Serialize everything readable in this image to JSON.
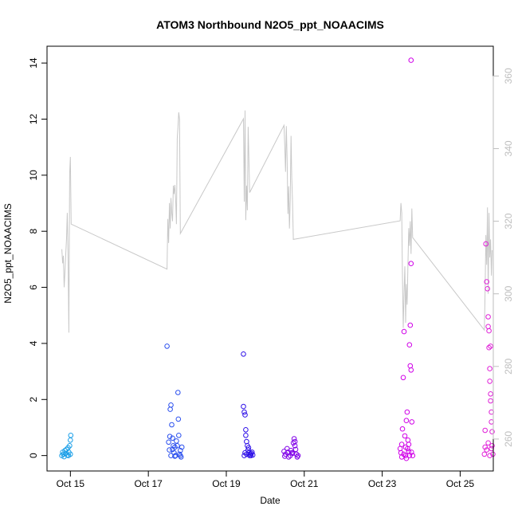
{
  "chart_data": {
    "type": "scatter",
    "title": "ATOM3 Northbound N2O5_ppt_NOAACIMS",
    "xlabel": "Date",
    "ylabel": "N2O5_ppt_NOAACIMS",
    "x_unit": "days in October",
    "xlim": [
      14.4,
      25.85
    ],
    "ylim": [
      -0.55,
      14.6
    ],
    "y2lim": [
      251.2,
      368.2
    ],
    "x_ticks": [
      15,
      17,
      19,
      21,
      23,
      25
    ],
    "x_tick_labels": [
      "Oct 15",
      "Oct 17",
      "Oct 19",
      "Oct 21",
      "Oct 23",
      "Oct 25"
    ],
    "y_ticks": [
      0,
      2,
      4,
      6,
      8,
      10,
      12,
      14
    ],
    "y_tick_labels": [
      "0",
      "2",
      "4",
      "6",
      "8",
      "10",
      "12",
      "14"
    ],
    "y2_ticks": [
      260,
      280,
      300,
      320,
      340,
      360
    ],
    "y2_tick_labels": [
      "260",
      "280",
      "300",
      "320",
      "340",
      "360"
    ],
    "grid": false,
    "secondary_line_color": "#c8c8c8",
    "secondary_axis_color": "#bebebe",
    "secondary_line": [
      [
        14.78,
        312.3
      ],
      [
        14.8,
        308.4
      ],
      [
        14.82,
        310.5
      ],
      [
        14.84,
        301.8
      ],
      [
        14.86,
        306.0
      ],
      [
        14.88,
        311.0
      ],
      [
        14.9,
        315.3
      ],
      [
        14.92,
        322.3
      ],
      [
        14.94,
        310.4
      ],
      [
        14.96,
        289.3
      ],
      [
        14.98,
        333.0
      ],
      [
        15.0,
        337.7
      ],
      [
        15.02,
        319.2
      ],
      [
        17.48,
        306.8
      ],
      [
        17.5,
        320.6
      ],
      [
        17.52,
        314.0
      ],
      [
        17.54,
        325.0
      ],
      [
        17.56,
        318.0
      ],
      [
        17.58,
        326.4
      ],
      [
        17.6,
        322.3
      ],
      [
        17.62,
        320.0
      ],
      [
        17.64,
        329.8
      ],
      [
        17.66,
        327.5
      ],
      [
        17.68,
        330.0
      ],
      [
        17.7,
        326.0
      ],
      [
        17.72,
        319.2
      ],
      [
        17.74,
        342.8
      ],
      [
        17.76,
        345.9
      ],
      [
        17.78,
        350.0
      ],
      [
        17.8,
        348.0
      ],
      [
        17.82,
        316.6
      ],
      [
        19.44,
        348.2
      ],
      [
        19.46,
        325.4
      ],
      [
        19.48,
        350.5
      ],
      [
        19.5,
        320.3
      ],
      [
        19.52,
        329.8
      ],
      [
        19.54,
        323.0
      ],
      [
        19.56,
        346.0
      ],
      [
        19.58,
        337.4
      ],
      [
        19.6,
        327.9
      ],
      [
        20.48,
        346.4
      ],
      [
        20.5,
        341.0
      ],
      [
        20.52,
        333.6
      ],
      [
        20.54,
        346.2
      ],
      [
        20.56,
        337.0
      ],
      [
        20.58,
        322.0
      ],
      [
        20.6,
        329.6
      ],
      [
        20.62,
        318.0
      ],
      [
        20.64,
        326.0
      ],
      [
        20.66,
        343.5
      ],
      [
        20.68,
        332.0
      ],
      [
        20.7,
        325.0
      ],
      [
        20.72,
        315.0
      ],
      [
        23.46,
        320.1
      ],
      [
        23.48,
        325.0
      ],
      [
        23.5,
        322.3
      ],
      [
        23.52,
        305.0
      ],
      [
        23.54,
        290.6
      ],
      [
        23.56,
        300.0
      ],
      [
        23.58,
        307.6
      ],
      [
        23.6,
        292.0
      ],
      [
        23.62,
        302.7
      ],
      [
        23.64,
        297.0
      ],
      [
        23.66,
        308.0
      ],
      [
        23.68,
        318.1
      ],
      [
        23.7,
        313.2
      ],
      [
        23.72,
        320.0
      ],
      [
        23.74,
        311.0
      ],
      [
        23.76,
        323.5
      ],
      [
        23.78,
        315.5
      ],
      [
        25.62,
        290.0
      ],
      [
        25.64,
        300.5
      ],
      [
        25.66,
        316.2
      ],
      [
        25.68,
        308.0
      ],
      [
        25.7,
        323.8
      ],
      [
        25.72,
        300.0
      ],
      [
        25.74,
        322.3
      ],
      [
        25.76,
        310.0
      ],
      [
        25.78,
        315.0
      ],
      [
        25.8,
        305.0
      ],
      [
        25.82,
        312.0
      ]
    ],
    "series": [
      {
        "color": "#1a9fe8",
        "points": [
          [
            14.78,
            0.0
          ],
          [
            14.8,
            0.12
          ],
          [
            14.82,
            0.05
          ],
          [
            14.84,
            -0.04
          ],
          [
            14.86,
            0.18
          ],
          [
            14.88,
            0.08
          ],
          [
            14.9,
            0.22
          ],
          [
            14.92,
            0.02
          ],
          [
            14.94,
            0.28
          ],
          [
            14.96,
            0.12
          ],
          [
            14.98,
            0.35
          ],
          [
            15.0,
            0.55
          ],
          [
            15.01,
            0.72
          ],
          [
            14.95,
            0.0
          ],
          [
            15.0,
            0.05
          ]
        ]
      },
      {
        "color": "#2a4fee",
        "points": [
          [
            17.48,
            3.9
          ],
          [
            17.52,
            0.48
          ],
          [
            17.55,
            0.68
          ],
          [
            17.56,
            1.65
          ],
          [
            17.58,
            1.8
          ],
          [
            17.6,
            1.1
          ],
          [
            17.54,
            0.2
          ],
          [
            17.58,
            0.0
          ],
          [
            17.62,
            0.22
          ],
          [
            17.64,
            0.35
          ],
          [
            17.66,
            0.1
          ],
          [
            17.68,
            0.3
          ],
          [
            17.7,
            0.0
          ],
          [
            17.72,
            0.52
          ],
          [
            17.74,
            0.35
          ],
          [
            17.76,
            2.25
          ],
          [
            17.78,
            0.72
          ],
          [
            17.8,
            0.05
          ],
          [
            17.82,
            0.18
          ],
          [
            17.84,
            -0.05
          ],
          [
            17.86,
            0.3
          ],
          [
            17.62,
            0.62
          ],
          [
            17.68,
            -0.02
          ],
          [
            17.77,
            1.3
          ],
          [
            17.82,
            0.0
          ]
        ]
      },
      {
        "color": "#2e10e8",
        "points": [
          [
            19.44,
            3.62
          ],
          [
            19.44,
            1.75
          ],
          [
            19.46,
            1.55
          ],
          [
            19.48,
            1.45
          ],
          [
            19.5,
            0.92
          ],
          [
            19.5,
            0.72
          ],
          [
            19.52,
            0.5
          ],
          [
            19.54,
            0.35
          ],
          [
            19.56,
            0.2
          ],
          [
            19.58,
            0.1
          ],
          [
            19.6,
            0.0
          ],
          [
            19.62,
            0.05
          ],
          [
            19.64,
            0.08
          ],
          [
            19.66,
            0.12
          ],
          [
            19.68,
            0.02
          ],
          [
            19.46,
            0.0
          ],
          [
            19.52,
            0.05
          ],
          [
            19.57,
            0.28
          ],
          [
            19.63,
            0.0
          ],
          [
            19.48,
            0.1
          ]
        ]
      },
      {
        "color": "#8000e8",
        "points": [
          [
            20.48,
            0.15
          ],
          [
            20.52,
            0.05
          ],
          [
            20.56,
            0.25
          ],
          [
            20.6,
            -0.05
          ],
          [
            20.64,
            0.0
          ],
          [
            20.66,
            0.18
          ],
          [
            20.68,
            0.1
          ],
          [
            20.7,
            0.08
          ],
          [
            20.72,
            0.45
          ],
          [
            20.74,
            0.6
          ],
          [
            20.76,
            0.35
          ],
          [
            20.78,
            0.22
          ],
          [
            20.8,
            0.05
          ],
          [
            20.82,
            -0.05
          ],
          [
            20.84,
            0.0
          ],
          [
            20.5,
            -0.02
          ],
          [
            20.58,
            0.12
          ],
          [
            20.76,
            0.5
          ]
        ]
      },
      {
        "color": "#d000e8",
        "points": [
          [
            23.46,
            0.25
          ],
          [
            23.48,
            0.1
          ],
          [
            23.5,
            0.4
          ],
          [
            23.52,
            0.95
          ],
          [
            23.54,
            2.78
          ],
          [
            23.56,
            4.42
          ],
          [
            23.58,
            0.7
          ],
          [
            23.6,
            0.3
          ],
          [
            23.62,
            1.25
          ],
          [
            23.64,
            1.55
          ],
          [
            23.66,
            0.55
          ],
          [
            23.68,
            0.15
          ],
          [
            23.7,
            3.95
          ],
          [
            23.72,
            3.2
          ],
          [
            23.74,
            3.05
          ],
          [
            23.72,
            4.65
          ],
          [
            23.74,
            6.85
          ],
          [
            23.74,
            14.1
          ],
          [
            23.76,
            1.2
          ],
          [
            23.78,
            0.0
          ],
          [
            23.5,
            -0.05
          ],
          [
            23.55,
            0.05
          ],
          [
            23.6,
            0.0
          ],
          [
            23.65,
            0.25
          ],
          [
            23.7,
            0.0
          ],
          [
            23.75,
            0.12
          ],
          [
            23.62,
            -0.1
          ],
          [
            23.68,
            0.4
          ]
        ]
      },
      {
        "color": "#e020d8",
        "points": [
          [
            25.62,
            0.05
          ],
          [
            25.64,
            0.3
          ],
          [
            25.66,
            7.55
          ],
          [
            25.68,
            6.2
          ],
          [
            25.7,
            5.95
          ],
          [
            25.72,
            4.95
          ],
          [
            25.72,
            4.6
          ],
          [
            25.74,
            4.45
          ],
          [
            25.74,
            3.85
          ],
          [
            25.76,
            3.1
          ],
          [
            25.76,
            2.65
          ],
          [
            25.78,
            2.2
          ],
          [
            25.78,
            1.95
          ],
          [
            25.8,
            1.55
          ],
          [
            25.8,
            1.2
          ],
          [
            25.82,
            0.85
          ],
          [
            25.82,
            0.35
          ],
          [
            25.84,
            0.05
          ],
          [
            25.64,
            0.9
          ],
          [
            25.68,
            0.2
          ],
          [
            25.72,
            0.45
          ],
          [
            25.76,
            0.0
          ],
          [
            25.8,
            0.25
          ],
          [
            25.78,
            3.9
          ]
        ]
      }
    ]
  }
}
